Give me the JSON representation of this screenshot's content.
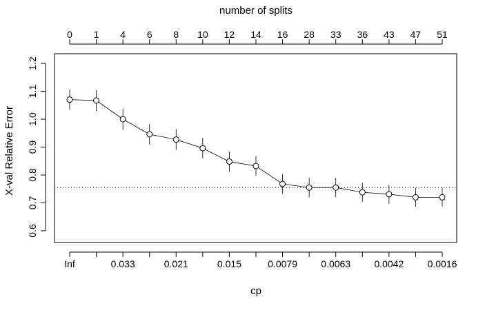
{
  "chart_data": {
    "type": "line",
    "xlabel": "cp",
    "ylabel": "X-val Relative Error",
    "top_axis_label": "number of splits",
    "ylim": [
      0.55,
      1.25
    ],
    "y_ticks": [
      "0.6",
      "0.7",
      "0.8",
      "0.9",
      "1.0",
      "1.1",
      "1.2"
    ],
    "x": [
      1,
      2,
      3,
      4,
      5,
      6,
      7,
      8,
      9,
      10,
      11,
      12,
      13,
      14,
      15
    ],
    "cp_tick_labels": [
      "Inf",
      "",
      "0.033",
      "",
      "0.021",
      "",
      "0.015",
      "",
      "0.0079",
      "",
      "0.0063",
      "",
      "0.0042",
      "",
      "0.0016"
    ],
    "nsplit_labels": [
      "0",
      "1",
      "4",
      "6",
      "8",
      "10",
      "12",
      "14",
      "16",
      "28",
      "33",
      "36",
      "43",
      "47",
      "51"
    ],
    "series": [
      {
        "values": [
          1.07,
          1.067,
          1.0,
          0.946,
          0.927,
          0.896,
          0.848,
          0.832,
          0.768,
          0.755,
          0.755,
          0.738,
          0.731,
          0.72,
          0.72
        ],
        "std_err": [
          0.037,
          0.037,
          0.038,
          0.037,
          0.037,
          0.037,
          0.036,
          0.036,
          0.035,
          0.035,
          0.035,
          0.034,
          0.034,
          0.034,
          0.034
        ]
      }
    ],
    "reference_line": {
      "y": 0.755,
      "style": "dotted"
    },
    "grid": false,
    "box": true
  }
}
